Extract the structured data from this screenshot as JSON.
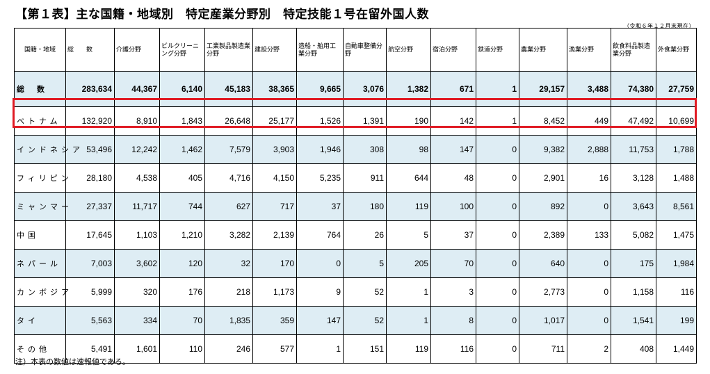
{
  "title": "【第１表】主な国籍・地域別　特定産業分野別　特定技能１号在留外国人数",
  "as_of": "（令和６年１２月末現在）",
  "headers": [
    "国籍・地域",
    "総　　数",
    "介護分野",
    "ビルクリーニング分野",
    "工業製品製造業分野",
    "建設分野",
    "造船・舶用工業分野",
    "自動車整備分野",
    "航空分野",
    "宿泊分野",
    "鉄道分野",
    "農業分野",
    "漁業分野",
    "飲食料品製造業分野",
    "外食業分野"
  ],
  "rows": [
    [
      "総数",
      "283,634",
      "44,367",
      "6,140",
      "45,183",
      "38,365",
      "9,665",
      "3,076",
      "1,382",
      "671",
      "1",
      "29,157",
      "3,488",
      "74,380",
      "27,759"
    ],
    [
      "ベトナム",
      "132,920",
      "8,910",
      "1,843",
      "26,648",
      "25,177",
      "1,526",
      "1,391",
      "190",
      "142",
      "1",
      "8,452",
      "449",
      "47,492",
      "10,699"
    ],
    [
      "インドネシア",
      "53,496",
      "12,242",
      "1,462",
      "7,579",
      "3,903",
      "1,946",
      "308",
      "98",
      "147",
      "0",
      "9,382",
      "2,888",
      "11,753",
      "1,788"
    ],
    [
      "フィリピン",
      "28,180",
      "4,538",
      "405",
      "4,716",
      "4,150",
      "5,235",
      "911",
      "644",
      "48",
      "0",
      "2,901",
      "16",
      "3,128",
      "1,488"
    ],
    [
      "ミャンマー",
      "27,337",
      "11,717",
      "744",
      "627",
      "717",
      "37",
      "180",
      "119",
      "100",
      "0",
      "892",
      "0",
      "3,643",
      "8,561"
    ],
    [
      "中国",
      "17,645",
      "1,103",
      "1,210",
      "3,282",
      "2,139",
      "764",
      "26",
      "5",
      "37",
      "0",
      "2,389",
      "133",
      "5,082",
      "1,475"
    ],
    [
      "ネパール",
      "7,003",
      "3,602",
      "120",
      "32",
      "170",
      "0",
      "5",
      "205",
      "70",
      "0",
      "640",
      "0",
      "175",
      "1,984"
    ],
    [
      "カンボジア",
      "5,999",
      "320",
      "176",
      "218",
      "1,173",
      "9",
      "52",
      "1",
      "3",
      "0",
      "2,773",
      "0",
      "1,158",
      "116"
    ],
    [
      "タイ",
      "5,563",
      "334",
      "70",
      "1,835",
      "359",
      "147",
      "52",
      "1",
      "8",
      "0",
      "1,017",
      "0",
      "1,541",
      "199"
    ],
    [
      "その他",
      "5,491",
      "1,601",
      "110",
      "246",
      "577",
      "1",
      "151",
      "119",
      "116",
      "0",
      "711",
      "2",
      "408",
      "1,449"
    ]
  ],
  "note": "注）本表の数値は速報値である。",
  "highlight_row": "ベトナム",
  "colors": {
    "shade": "#deedf4",
    "highlight_border": "#e01b24"
  }
}
